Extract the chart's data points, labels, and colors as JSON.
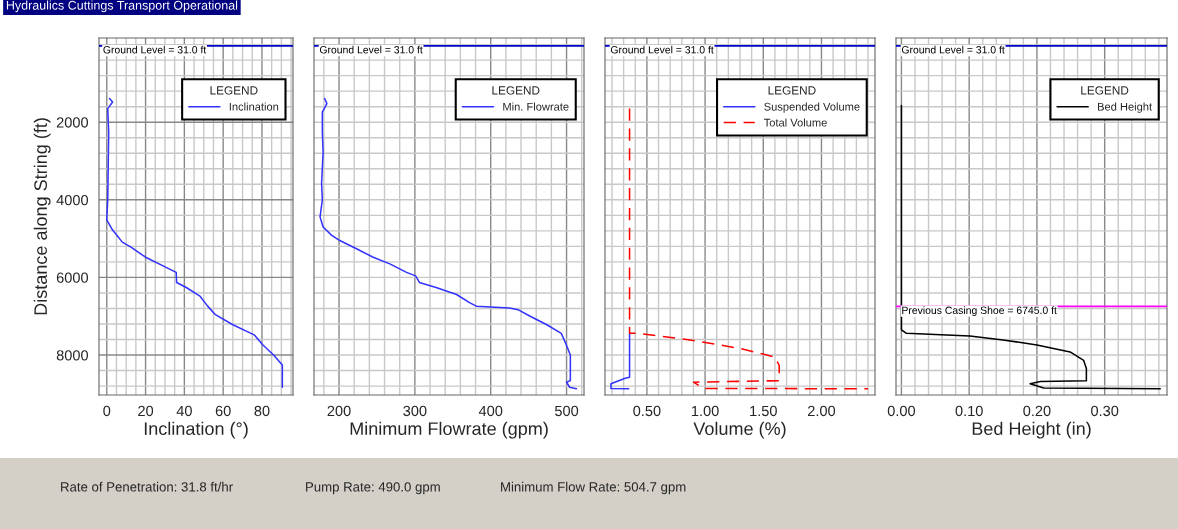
{
  "chart_data": [
    {
      "type": "line",
      "title": "Hydraulics Cuttings Transport Operational",
      "xlabel": "Inclination (°)",
      "ylabel": "Distance along String (ft)",
      "legend_title": "LEGEND",
      "legend": "top right",
      "grid": true,
      "xlim": [
        -4,
        96
      ],
      "ylim": [
        9030,
        -170
      ],
      "xticks": [
        0,
        {
          "value": 5,
          "label": null
        },
        {
          "value": 10,
          "label": null
        },
        {
          "value": 15,
          "label": null
        },
        20,
        {
          "value": 25,
          "label": null
        },
        {
          "value": 30,
          "label": null
        },
        {
          "value": 35,
          "label": null
        },
        40,
        {
          "value": 45,
          "label": null
        },
        {
          "value": 50,
          "label": null
        },
        {
          "value": 55,
          "label": null
        },
        60,
        {
          "value": 65,
          "label": null
        },
        {
          "value": 70,
          "label": null
        },
        {
          "value": 75,
          "label": null
        },
        80,
        {
          "value": 85,
          "label": null
        },
        {
          "value": 90,
          "label": null
        },
        {
          "value": 95,
          "label": null
        }
      ],
      "yticks": [
        {
          "value": 0,
          "label": null
        },
        {
          "value": 400,
          "label": null
        },
        {
          "value": 800,
          "label": null
        },
        {
          "value": 1200,
          "label": null
        },
        {
          "value": 1600,
          "label": null
        },
        2000,
        {
          "value": 2400,
          "label": null
        },
        {
          "value": 2800,
          "label": null
        },
        {
          "value": 3200,
          "label": null
        },
        {
          "value": 3600,
          "label": null
        },
        4000,
        {
          "value": 4400,
          "label": null
        },
        {
          "value": 4800,
          "label": null
        },
        {
          "value": 5200,
          "label": null
        },
        {
          "value": 5600,
          "label": null
        },
        6000,
        {
          "value": 6400,
          "label": null
        },
        {
          "value": 6800,
          "label": null
        },
        {
          "value": 7200,
          "label": null
        },
        {
          "value": 7600,
          "label": null
        },
        8000,
        {
          "value": 8400,
          "label": null
        },
        {
          "value": 8800,
          "label": null
        }
      ],
      "ref_lines": [
        {
          "axis": "y",
          "value": 31,
          "label": "Ground Level = 31.0 ft",
          "color": "#0000cc"
        }
      ],
      "annotations": [
        "Rate of Penetration: 31.8 ft/hr",
        "Pump Rate: 490.0 gpm",
        "Minimum Flow Rate: 504.7 gpm"
      ],
      "series": [
        {
          "name": "Inclination",
          "color": "#3333ff",
          "line_style": "solid",
          "x": [
            1.4,
            3,
            0.5,
            1,
            0.5,
            0,
            3,
            5,
            8,
            12.5,
            20,
            30.6,
            35.8,
            36,
            41,
            48,
            52,
            56,
            65,
            76,
            80.5,
            86,
            90.5,
            90.5
          ],
          "values": [
            1390,
            1480,
            1650,
            2260,
            4000,
            4520,
            4780,
            4900,
            5090,
            5220,
            5480,
            5740,
            5870,
            6130,
            6260,
            6480,
            6740,
            6960,
            7220,
            7480,
            7740,
            8000,
            8260,
            8830
          ]
        }
      ]
    },
    {
      "type": "line",
      "xlabel": "Minimum Flowrate (gpm)",
      "legend_title": "LEGEND",
      "legend": "top right",
      "grid": true,
      "tick_labels": "x",
      "xlim": [
        167,
        523
      ],
      "ylim": [
        9030,
        -170
      ],
      "xticks": [
        {
          "value": 180,
          "label": null
        },
        200,
        {
          "value": 220,
          "label": null
        },
        {
          "value": 240,
          "label": null
        },
        {
          "value": 260,
          "label": null
        },
        {
          "value": 280,
          "label": null
        },
        300,
        {
          "value": 320,
          "label": null
        },
        {
          "value": 340,
          "label": null
        },
        {
          "value": 360,
          "label": null
        },
        {
          "value": 380,
          "label": null
        },
        400,
        {
          "value": 420,
          "label": null
        },
        {
          "value": 440,
          "label": null
        },
        {
          "value": 460,
          "label": null
        },
        {
          "value": 480,
          "label": null
        },
        500,
        {
          "value": 520,
          "label": null
        }
      ],
      "yticks": [
        {
          "value": 0,
          "label": null
        },
        {
          "value": 400,
          "label": null
        },
        {
          "value": 800,
          "label": null
        },
        {
          "value": 1200,
          "label": null
        },
        {
          "value": 1600,
          "label": null
        },
        {
          "value": 2000,
          "label": null
        },
        {
          "value": 2400,
          "label": null
        },
        {
          "value": 2800,
          "label": null
        },
        {
          "value": 3200,
          "label": null
        },
        {
          "value": 3600,
          "label": null
        },
        {
          "value": 4000,
          "label": null
        },
        {
          "value": 4400,
          "label": null
        },
        {
          "value": 4800,
          "label": null
        },
        {
          "value": 5200,
          "label": null
        },
        {
          "value": 5600,
          "label": null
        },
        {
          "value": 6000,
          "label": null
        },
        {
          "value": 6400,
          "label": null
        },
        {
          "value": 6800,
          "label": null
        },
        {
          "value": 7200,
          "label": null
        },
        {
          "value": 7600,
          "label": null
        },
        {
          "value": 8000,
          "label": null
        },
        {
          "value": 8400,
          "label": null
        },
        {
          "value": 8800,
          "label": null
        }
      ],
      "ref_lines": [
        {
          "axis": "y",
          "value": 31,
          "label": "Ground Level = 31.0 ft",
          "color": "#0000cc"
        }
      ],
      "series": [
        {
          "name": "Min. Flowrate",
          "color": "#3333ff",
          "line_style": "solid",
          "x": [
            181,
            184,
            178,
            178,
            179,
            177,
            178,
            175,
            179,
            190,
            201,
            223,
            245,
            267,
            289,
            301,
            306,
            328,
            355,
            372,
            381,
            425,
            436,
            452,
            474,
            493,
            498,
            505,
            505,
            500,
            504,
            513
          ],
          "values": [
            1390,
            1520,
            1740,
            2260,
            2780,
            3570,
            4000,
            4440,
            4700,
            4910,
            5050,
            5260,
            5480,
            5650,
            5870,
            5960,
            6130,
            6260,
            6440,
            6650,
            6740,
            6790,
            6830,
            7000,
            7220,
            7440,
            7660,
            8000,
            8660,
            8700,
            8830,
            8870
          ]
        }
      ]
    },
    {
      "type": "line",
      "xlabel": "Volume (%)",
      "legend_title": "LEGEND",
      "legend": "top right",
      "grid": true,
      "tick_labels": "x",
      "xlim": [
        0.14,
        2.46
      ],
      "ylim": [
        9030,
        -170
      ],
      "xticks": [
        {
          "value": 0.2,
          "label": null
        },
        {
          "value": 0.3,
          "label": null
        },
        {
          "value": 0.4,
          "label": null
        },
        {
          "value": 0.5,
          "label": "0.50"
        },
        {
          "value": 0.6,
          "label": null
        },
        {
          "value": 0.7,
          "label": null
        },
        {
          "value": 0.8,
          "label": null
        },
        {
          "value": 0.9,
          "label": null
        },
        {
          "value": 1.0,
          "label": "1.00"
        },
        {
          "value": 1.1,
          "label": null
        },
        {
          "value": 1.2,
          "label": null
        },
        {
          "value": 1.3,
          "label": null
        },
        {
          "value": 1.4,
          "label": null
        },
        {
          "value": 1.5,
          "label": "1.50"
        },
        {
          "value": 1.6,
          "label": null
        },
        {
          "value": 1.7,
          "label": null
        },
        {
          "value": 1.8,
          "label": null
        },
        {
          "value": 1.9,
          "label": null
        },
        {
          "value": 2.0,
          "label": "2.00"
        },
        {
          "value": 2.1,
          "label": null
        },
        {
          "value": 2.2,
          "label": null
        },
        {
          "value": 2.3,
          "label": null
        },
        {
          "value": 2.4,
          "label": null
        }
      ],
      "yticks": [
        {
          "value": 0,
          "label": null
        },
        {
          "value": 400,
          "label": null
        },
        {
          "value": 800,
          "label": null
        },
        {
          "value": 1200,
          "label": null
        },
        {
          "value": 1600,
          "label": null
        },
        {
          "value": 2000,
          "label": null
        },
        {
          "value": 2400,
          "label": null
        },
        {
          "value": 2800,
          "label": null
        },
        {
          "value": 3200,
          "label": null
        },
        {
          "value": 3600,
          "label": null
        },
        {
          "value": 4000,
          "label": null
        },
        {
          "value": 4400,
          "label": null
        },
        {
          "value": 4800,
          "label": null
        },
        {
          "value": 5200,
          "label": null
        },
        {
          "value": 5600,
          "label": null
        },
        {
          "value": 6000,
          "label": null
        },
        {
          "value": 6400,
          "label": null
        },
        {
          "value": 6800,
          "label": null
        },
        {
          "value": 7200,
          "label": null
        },
        {
          "value": 7600,
          "label": null
        },
        {
          "value": 8000,
          "label": null
        },
        {
          "value": 8400,
          "label": null
        },
        {
          "value": 8800,
          "label": null
        }
      ],
      "ref_lines": [
        {
          "axis": "y",
          "value": 31,
          "label": "Ground Level = 31.0 ft",
          "color": "#0000cc"
        }
      ],
      "series": [
        {
          "name": "Suspended Volume",
          "color": "#3333ff",
          "line_style": "solid",
          "x": [
            0.351,
            0.351,
            0.314,
            0.191,
            0.191,
            0.343
          ],
          "values": [
            7440,
            8570,
            8600,
            8740,
            8860,
            8870
          ]
        },
        {
          "name": "Total Volume",
          "color": "#ff0000",
          "line_style": "dashed",
          "x": [
            0.351,
            0.351,
            0.414,
            0.871,
            1.3,
            1.6,
            1.637,
            1.637,
            0.9,
            0.986,
            2.4
          ],
          "values": [
            1650,
            7440,
            7440,
            7610,
            7830,
            8050,
            8270,
            8660,
            8700,
            8860,
            8870
          ]
        }
      ]
    },
    {
      "type": "line",
      "xlabel": "Bed Height (in)",
      "legend_title": "LEGEND",
      "legend": "top right",
      "grid": true,
      "tick_labels": "x",
      "xlim": [
        -0.008,
        0.392
      ],
      "ylim": [
        9030,
        -170
      ],
      "xticks": [
        {
          "value": 0.0,
          "label": "0.00"
        },
        {
          "value": 0.02,
          "label": null
        },
        {
          "value": 0.04,
          "label": null
        },
        {
          "value": 0.06,
          "label": null
        },
        {
          "value": 0.08,
          "label": null
        },
        {
          "value": 0.1,
          "label": "0.10"
        },
        {
          "value": 0.12,
          "label": null
        },
        {
          "value": 0.14,
          "label": null
        },
        {
          "value": 0.16,
          "label": null
        },
        {
          "value": 0.18,
          "label": null
        },
        {
          "value": 0.2,
          "label": "0.20"
        },
        {
          "value": 0.22,
          "label": null
        },
        {
          "value": 0.24,
          "label": null
        },
        {
          "value": 0.26,
          "label": null
        },
        {
          "value": 0.28,
          "label": null
        },
        {
          "value": 0.3,
          "label": "0.30"
        },
        {
          "value": 0.32,
          "label": null
        },
        {
          "value": 0.34,
          "label": null
        },
        {
          "value": 0.36,
          "label": null
        },
        {
          "value": 0.38,
          "label": null
        }
      ],
      "yticks": [
        {
          "value": 0,
          "label": null
        },
        {
          "value": 400,
          "label": null
        },
        {
          "value": 800,
          "label": null
        },
        {
          "value": 1200,
          "label": null
        },
        {
          "value": 1600,
          "label": null
        },
        {
          "value": 2000,
          "label": null
        },
        {
          "value": 2400,
          "label": null
        },
        {
          "value": 2800,
          "label": null
        },
        {
          "value": 3200,
          "label": null
        },
        {
          "value": 3600,
          "label": null
        },
        {
          "value": 4000,
          "label": null
        },
        {
          "value": 4400,
          "label": null
        },
        {
          "value": 4800,
          "label": null
        },
        {
          "value": 5200,
          "label": null
        },
        {
          "value": 5600,
          "label": null
        },
        {
          "value": 6000,
          "label": null
        },
        {
          "value": 6400,
          "label": null
        },
        {
          "value": 6800,
          "label": null
        },
        {
          "value": 7200,
          "label": null
        },
        {
          "value": 7600,
          "label": null
        },
        {
          "value": 8000,
          "label": null
        },
        {
          "value": 8400,
          "label": null
        },
        {
          "value": 8800,
          "label": null
        }
      ],
      "ref_lines": [
        {
          "axis": "y",
          "value": 31,
          "label": "Ground Level = 31.0 ft",
          "color": "#0000cc"
        },
        {
          "axis": "y",
          "value": 6745,
          "label": "Previous Casing Shoe = 6745.0 ft",
          "color": "#ff00ff"
        }
      ],
      "series": [
        {
          "name": "Bed Height",
          "color": "#000000",
          "line_style": "solid",
          "x": [
            0,
            0,
            0.0074,
            0.101,
            0.15,
            0.2,
            0.249,
            0.269,
            0.273,
            0.273,
            0.205,
            0.19,
            0.21,
            0.382
          ],
          "values": [
            1570,
            7350,
            7440,
            7510,
            7610,
            7740,
            7920,
            8140,
            8350,
            8660,
            8680,
            8740,
            8850,
            8870
          ]
        }
      ]
    }
  ]
}
